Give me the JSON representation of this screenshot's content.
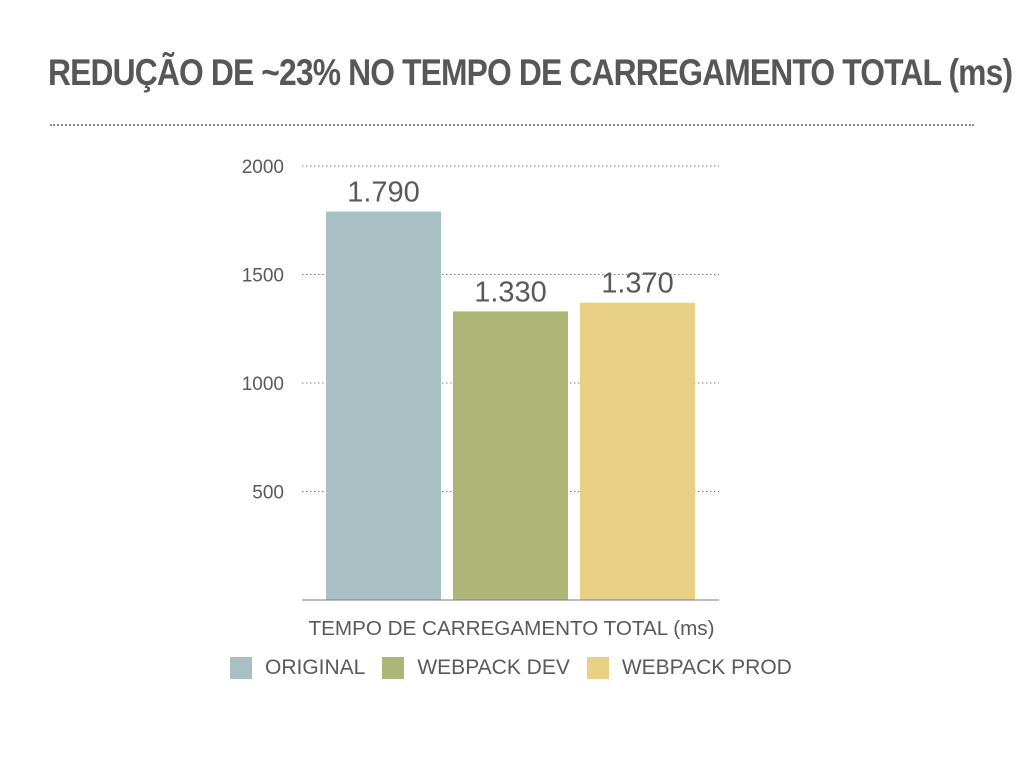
{
  "slide": {
    "title": "REDUÇÃO DE ~23% NO TEMPO DE CARREGAMENTO TOTAL (ms)"
  },
  "chart_data": {
    "type": "bar",
    "title": "",
    "categories": [
      "TEMPO DE CARREGAMENTO TOTAL (ms)"
    ],
    "xlabel": "TEMPO DE CARREGAMENTO TOTAL (ms)",
    "ylabel": "",
    "ylim": [
      0,
      2000
    ],
    "yticks": [
      500,
      1000,
      1500,
      2000
    ],
    "grid": true,
    "legend_position": "bottom",
    "series": [
      {
        "name": "ORIGINAL",
        "values": [
          1790
        ],
        "label": "1.790",
        "color": "#a8c0c4"
      },
      {
        "name": "WEBPACK DEV",
        "values": [
          1330
        ],
        "label": "1.330",
        "color": "#aeb677"
      },
      {
        "name": "WEBPACK PROD",
        "values": [
          1370
        ],
        "label": "1.370",
        "color": "#e8d184"
      }
    ]
  }
}
